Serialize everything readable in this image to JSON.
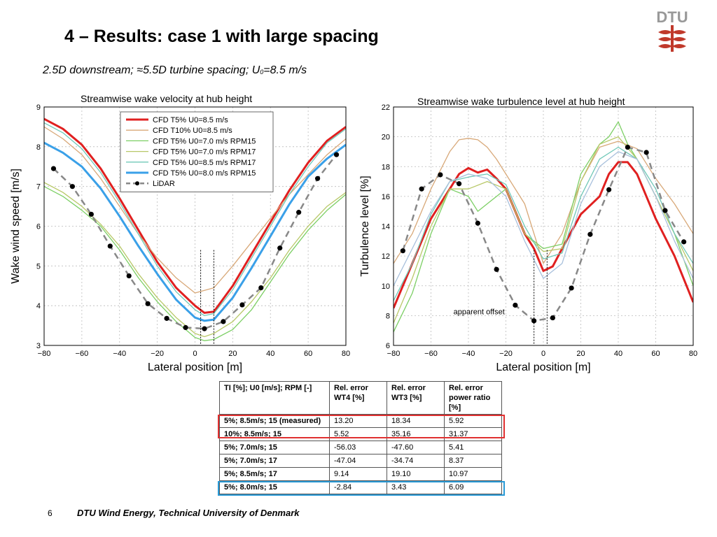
{
  "slide": {
    "title": "4 – Results: case 1 with large spacing",
    "subtitle_main": "2.5D downstream; ≈5.5D turbine spacing; U",
    "subtitle_sub": "0",
    "subtitle_tail": "=8.5 m/s",
    "logo_text": "DTU",
    "page_number": "6",
    "footer": "DTU Wind Energy, Technical University of Denmark"
  },
  "colors": {
    "red": "#e02020",
    "tan": "#d8a878",
    "green": "#7ccf64",
    "olive": "#b8c868",
    "teal": "#70c8b8",
    "lightblue": "#a8c0dc",
    "blue": "#3aa0e8",
    "lidar": "#888888",
    "logo": "#c0392b"
  },
  "chart_data": [
    {
      "type": "line",
      "title": "Streamwise wake velocity at hub height",
      "xlabel": "Lateral position [m]",
      "ylabel": "Wake wind speed [m/s]",
      "xlim": [
        -80,
        80
      ],
      "ylim": [
        3,
        9
      ],
      "xticks": [
        -80,
        -60,
        -40,
        -20,
        0,
        20,
        40,
        60,
        80
      ],
      "yticks": [
        3,
        4,
        5,
        6,
        7,
        8,
        9
      ],
      "grid": true,
      "legend_position": "top-right",
      "series": [
        {
          "name": "CFD T5% U0=8.5 m/s",
          "color": "red",
          "width": 3,
          "x": [
            -80,
            -70,
            -60,
            -50,
            -40,
            -30,
            -20,
            -10,
            0,
            5,
            10,
            20,
            30,
            40,
            50,
            60,
            70,
            80
          ],
          "y": [
            8.7,
            8.45,
            8.05,
            7.45,
            6.7,
            5.9,
            5.1,
            4.45,
            4.0,
            3.82,
            3.85,
            4.5,
            5.3,
            6.1,
            6.9,
            7.6,
            8.15,
            8.5
          ]
        },
        {
          "name": "CFD T10% U0=8.5 m/s",
          "color": "tan",
          "width": 1.3,
          "x": [
            -80,
            -70,
            -60,
            -50,
            -40,
            -30,
            -20,
            -10,
            0,
            10,
            20,
            30,
            40,
            50,
            60,
            70,
            80
          ],
          "y": [
            8.5,
            8.2,
            7.8,
            7.2,
            6.5,
            5.8,
            5.2,
            4.7,
            4.32,
            4.45,
            5.0,
            5.6,
            6.2,
            6.8,
            7.3,
            7.8,
            8.2
          ]
        },
        {
          "name": "CFD T5% U0=7.0 m/s RPM15",
          "color": "green",
          "width": 1.3,
          "x": [
            -80,
            -70,
            -60,
            -50,
            -40,
            -30,
            -20,
            -10,
            0,
            5,
            10,
            20,
            30,
            40,
            50,
            60,
            70,
            80
          ],
          "y": [
            7.0,
            6.75,
            6.4,
            6.0,
            5.4,
            4.7,
            4.1,
            3.6,
            3.2,
            3.12,
            3.15,
            3.4,
            3.9,
            4.6,
            5.3,
            5.9,
            6.4,
            6.8
          ]
        },
        {
          "name": "CFD T5% U0=7.0 m/s RPM17",
          "color": "olive",
          "width": 1.3,
          "x": [
            -80,
            -70,
            -60,
            -50,
            -40,
            -30,
            -20,
            -10,
            0,
            5,
            10,
            20,
            30,
            40,
            50,
            60,
            70,
            80
          ],
          "y": [
            7.1,
            6.85,
            6.5,
            6.05,
            5.5,
            4.8,
            4.2,
            3.7,
            3.3,
            3.22,
            3.3,
            3.6,
            4.1,
            4.7,
            5.4,
            6.0,
            6.5,
            6.85
          ]
        },
        {
          "name": "CFD T5% U0=8.5 m/s RPM17",
          "color": "teal",
          "width": 1.3,
          "x": [
            -80,
            -70,
            -60,
            -50,
            -40,
            -30,
            -20,
            -10,
            0,
            5,
            10,
            20,
            30,
            40,
            50,
            60,
            70,
            80
          ],
          "y": [
            8.6,
            8.35,
            7.95,
            7.35,
            6.6,
            5.8,
            5.0,
            4.35,
            3.9,
            3.75,
            3.8,
            4.4,
            5.2,
            6.0,
            6.8,
            7.5,
            8.1,
            8.45
          ]
        },
        {
          "name": "CFD T5% U0=8.0 m/s RPM15",
          "color": "blue",
          "width": 3,
          "x": [
            -80,
            -70,
            -60,
            -50,
            -40,
            -30,
            -20,
            -10,
            0,
            5,
            10,
            20,
            30,
            40,
            50,
            60,
            70,
            80
          ],
          "y": [
            8.1,
            7.85,
            7.5,
            6.95,
            6.25,
            5.5,
            4.8,
            4.15,
            3.7,
            3.62,
            3.65,
            4.2,
            4.95,
            5.75,
            6.55,
            7.25,
            7.7,
            8.05
          ]
        },
        {
          "name": "LiDAR",
          "color": "lidar",
          "width": 2.5,
          "dash": true,
          "markers": true,
          "x": [
            -75,
            -65,
            -55,
            -45,
            -35,
            -25,
            -15,
            -5,
            5,
            15,
            25,
            35,
            45,
            55,
            65,
            75
          ],
          "y": [
            7.45,
            7.0,
            6.3,
            5.5,
            4.75,
            4.05,
            3.68,
            3.45,
            3.42,
            3.6,
            4.02,
            4.45,
            5.45,
            6.35,
            7.2,
            7.8
          ]
        }
      ],
      "annotations": {
        "vlines_x": [
          3,
          10
        ]
      }
    },
    {
      "type": "line",
      "title": "Streamwise wake turbulence level at hub height",
      "xlabel": "Lateral position [m]",
      "ylabel": "Turbulence level [%]",
      "xlim": [
        -80,
        80
      ],
      "ylim": [
        6,
        22
      ],
      "xticks": [
        -80,
        -60,
        -40,
        -20,
        0,
        20,
        40,
        60,
        80
      ],
      "yticks": [
        6,
        8,
        10,
        12,
        14,
        16,
        18,
        20,
        22
      ],
      "grid": true,
      "series": [
        {
          "color": "red",
          "width": 3,
          "x": [
            -80,
            -70,
            -60,
            -50,
            -45,
            -40,
            -35,
            -30,
            -25,
            -20,
            -10,
            -5,
            0,
            5,
            10,
            20,
            30,
            35,
            40,
            45,
            50,
            60,
            70,
            80
          ],
          "y": [
            8.5,
            11.5,
            14.5,
            16.5,
            17.5,
            17.9,
            17.6,
            17.8,
            17.2,
            16.5,
            13.5,
            12.5,
            11.0,
            11.3,
            12.5,
            14.8,
            16.0,
            17.5,
            18.3,
            18.3,
            17.5,
            14.5,
            12.0,
            8.9
          ]
        },
        {
          "color": "tan",
          "width": 1.3,
          "x": [
            -80,
            -70,
            -60,
            -50,
            -45,
            -40,
            -35,
            -30,
            -25,
            -20,
            -10,
            0,
            10,
            20,
            30,
            40,
            50,
            60,
            70,
            80
          ],
          "y": [
            11.5,
            13.5,
            16.5,
            19.0,
            19.8,
            19.9,
            19.8,
            19.3,
            18.5,
            17.5,
            15.5,
            11.5,
            13.5,
            17.0,
            19.3,
            19.7,
            19.2,
            17.2,
            15.5,
            13.5
          ]
        },
        {
          "color": "green",
          "width": 1.3,
          "x": [
            -80,
            -70,
            -60,
            -50,
            -40,
            -35,
            -30,
            -20,
            -10,
            0,
            10,
            20,
            30,
            35,
            40,
            45,
            50,
            60,
            70,
            80
          ],
          "y": [
            6.9,
            9.5,
            13.5,
            16.5,
            16.0,
            15.0,
            15.5,
            16.5,
            13.5,
            12.5,
            12.8,
            17.5,
            19.5,
            20.0,
            21.0,
            19.5,
            18.5,
            16.0,
            13.5,
            10.0
          ]
        },
        {
          "color": "olive",
          "width": 1.3,
          "x": [
            -80,
            -70,
            -60,
            -50,
            -40,
            -30,
            -20,
            -10,
            0,
            10,
            20,
            30,
            40,
            50,
            60,
            70,
            80
          ],
          "y": [
            7.5,
            10.5,
            14.0,
            16.5,
            16.5,
            17.0,
            16.5,
            13.5,
            12.3,
            12.5,
            17.0,
            19.5,
            20.0,
            18.5,
            16.0,
            13.5,
            11.0
          ]
        },
        {
          "color": "teal",
          "width": 1.3,
          "x": [
            -80,
            -70,
            -60,
            -50,
            -40,
            -30,
            -20,
            -10,
            0,
            10,
            20,
            30,
            40,
            50,
            60,
            70,
            80
          ],
          "y": [
            9.0,
            11.5,
            14.8,
            17.0,
            17.3,
            17.5,
            16.8,
            14.0,
            11.8,
            12.2,
            16.0,
            18.5,
            19.3,
            18.5,
            16.5,
            13.5,
            11.5
          ]
        },
        {
          "color": "lightblue",
          "width": 1.3,
          "x": [
            -80,
            -70,
            -60,
            -50,
            -40,
            -30,
            -20,
            -10,
            0,
            10,
            20,
            30,
            40,
            50,
            60,
            70,
            80
          ],
          "y": [
            10.0,
            12.5,
            15.0,
            17.0,
            17.5,
            17.2,
            16.0,
            13.0,
            10.5,
            11.5,
            15.5,
            18.0,
            19.0,
            18.5,
            16.0,
            13.0,
            10.5
          ]
        },
        {
          "color": "lidar",
          "width": 2.5,
          "dash": true,
          "markers": true,
          "x": [
            -75,
            -65,
            -55,
            -45,
            -35,
            -25,
            -15,
            -5,
            5,
            15,
            25,
            35,
            45,
            55,
            65,
            75
          ],
          "y": [
            12.35,
            16.5,
            17.45,
            16.85,
            14.2,
            11.1,
            8.7,
            7.65,
            7.85,
            9.85,
            13.45,
            16.45,
            19.3,
            18.95,
            15.05,
            12.95
          ]
        }
      ],
      "annotations": {
        "vlines_x": [
          -5,
          2
        ],
        "text": "apparent offset"
      }
    }
  ],
  "table": {
    "header": [
      "TI [%]; U0 [m/s]; RPM [-]",
      "Rel. error WT4 [%]",
      "Rel. error WT3 [%]",
      "Rel. error power ratio [%]"
    ],
    "rows": [
      [
        "5%; 8.5m/s; 15 (measured)",
        "13.20",
        "18.34",
        "5.92"
      ],
      [
        "10%; 8.5m/s; 15",
        "5.52",
        "35.16",
        "31.37"
      ],
      [
        "5%; 7.0m/s; 15",
        "-56.03",
        "-47.60",
        "5.41"
      ],
      [
        "5%; 7.0m/s; 17",
        "-47.04",
        "-34.74",
        "8.37"
      ],
      [
        "5%; 8.5m/s; 17",
        "9.14",
        "19.10",
        "10.97"
      ],
      [
        "5%; 8.0m/s; 15",
        "-2.84",
        "3.43",
        "6.09"
      ]
    ]
  }
}
